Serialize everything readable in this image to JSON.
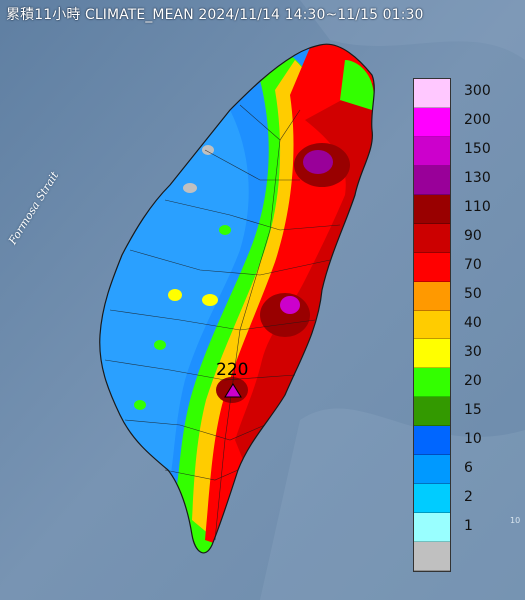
{
  "title": "累積11小時 CLIMATE_MEAN 2024/11/14 14:30~11/15 01:30",
  "sea_label": "Formosa Strait",
  "peak_label": "220",
  "corner_label": "10",
  "legend": {
    "classes": [
      {
        "label": "300",
        "color": "#ffc8ff"
      },
      {
        "label": "200",
        "color": "#ff00ff"
      },
      {
        "label": "150",
        "color": "#cc00cc"
      },
      {
        "label": "130",
        "color": "#990099"
      },
      {
        "label": "110",
        "color": "#990000"
      },
      {
        "label": "90",
        "color": "#cc0000"
      },
      {
        "label": "70",
        "color": "#ff0000"
      },
      {
        "label": "50",
        "color": "#ff9900"
      },
      {
        "label": "40",
        "color": "#ffcc00"
      },
      {
        "label": "30",
        "color": "#ffff00"
      },
      {
        "label": "20",
        "color": "#33ff00"
      },
      {
        "label": "15",
        "color": "#339900"
      },
      {
        "label": "10",
        "color": "#0066ff"
      },
      {
        "label": "6",
        "color": "#0099ff"
      },
      {
        "label": "2",
        "color": "#00ccff"
      },
      {
        "label": "1",
        "color": "#99ffff"
      },
      {
        "label": "",
        "color": "#c0c0c0"
      }
    ]
  }
}
